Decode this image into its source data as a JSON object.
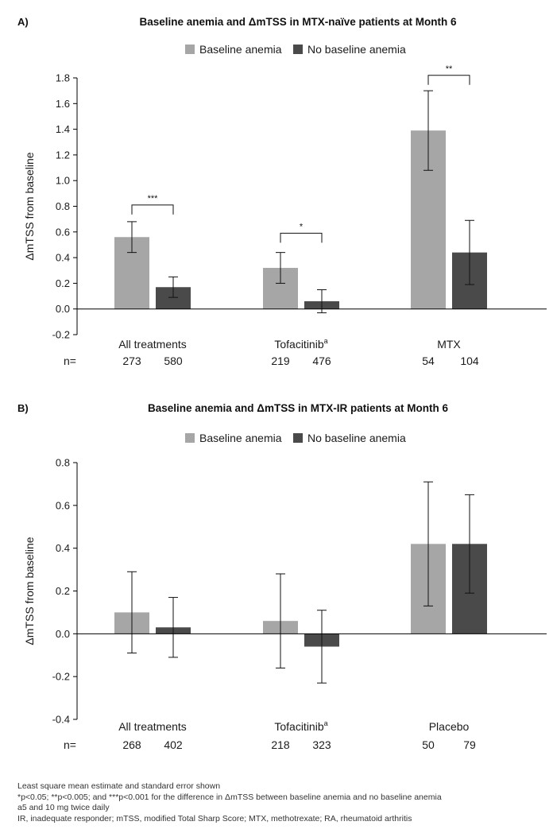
{
  "colors": {
    "baseline_anemia": "#a6a6a6",
    "no_baseline_anemia": "#4a4a4a",
    "axis": "#000000",
    "text": "#1a1a1a"
  },
  "chart_data": [
    {
      "type": "bar",
      "panel_label": "A)",
      "title": "Baseline anemia and ΔmTSS in MTX-naïve patients at Month 6",
      "ylabel": "ΔmTSS from baseline",
      "ylim": [
        -0.2,
        1.8
      ],
      "yticks": [
        "1.8",
        "1.6",
        "1.4",
        "1.2",
        "1.0",
        "0.8",
        "0.6",
        "0.4",
        "0.2",
        "0.0",
        "-0.2"
      ],
      "yticks_values": [
        1.8,
        1.6,
        1.4,
        1.2,
        1.0,
        0.8,
        0.6,
        0.4,
        0.2,
        0.0,
        -0.2
      ],
      "legend": [
        "Baseline anemia",
        "No baseline anemia"
      ],
      "legend_position": "top-center",
      "categories": [
        "All treatments",
        "Tofacitinib",
        "MTX"
      ],
      "category_superscripts": [
        "",
        "a",
        ""
      ],
      "series": [
        {
          "name": "Baseline anemia",
          "values": [
            0.56,
            0.32,
            1.39
          ],
          "errors": [
            0.12,
            0.12,
            0.31
          ]
        },
        {
          "name": "No baseline anemia",
          "values": [
            0.17,
            0.06,
            0.44
          ],
          "errors": [
            0.08,
            0.09,
            0.25
          ]
        }
      ],
      "n_label": "n=",
      "n_values": [
        [
          "273",
          "580"
        ],
        [
          "219",
          "476"
        ],
        [
          "54",
          "104"
        ]
      ],
      "significance": [
        {
          "category": 0,
          "label": "***",
          "y": 0.81
        },
        {
          "category": 1,
          "label": "*",
          "y": 0.59
        },
        {
          "category": 2,
          "label": "**",
          "y": 1.82
        }
      ]
    },
    {
      "type": "bar",
      "panel_label": "B)",
      "title": "Baseline anemia and ΔmTSS in MTX-IR patients at Month 6",
      "ylabel": "ΔmTSS from baseline",
      "ylim": [
        -0.4,
        0.8
      ],
      "yticks": [
        "0.8",
        "0.6",
        "0.4",
        "0.2",
        "0.0",
        "-0.2",
        "-0.4"
      ],
      "yticks_values": [
        0.8,
        0.6,
        0.4,
        0.2,
        0.0,
        -0.2,
        -0.4
      ],
      "legend": [
        "Baseline anemia",
        "No baseline anemia"
      ],
      "legend_position": "top-center",
      "categories": [
        "All treatments",
        "Tofacitinib",
        "Placebo"
      ],
      "category_superscripts": [
        "",
        "a",
        ""
      ],
      "series": [
        {
          "name": "Baseline anemia",
          "values": [
            0.1,
            0.06,
            0.42
          ],
          "errors": [
            0.19,
            0.22,
            0.29
          ]
        },
        {
          "name": "No baseline anemia",
          "values": [
            0.03,
            -0.06,
            0.42
          ],
          "errors": [
            0.14,
            0.17,
            0.23
          ]
        }
      ],
      "n_label": "n=",
      "n_values": [
        [
          "268",
          "402"
        ],
        [
          "218",
          "323"
        ],
        [
          "50",
          "79"
        ]
      ],
      "significance": []
    }
  ],
  "footnotes": [
    "Least square mean estimate and standard error shown",
    "*p<0.05; **p<0.005; and ***p<0.001 for the difference in ΔmTSS between baseline anemia and no baseline anemia",
    "a5 and 10 mg twice daily",
    "IR, inadequate responder; mTSS, modified Total Sharp Score; MTX, methotrexate; RA, rheumatoid arthritis"
  ]
}
